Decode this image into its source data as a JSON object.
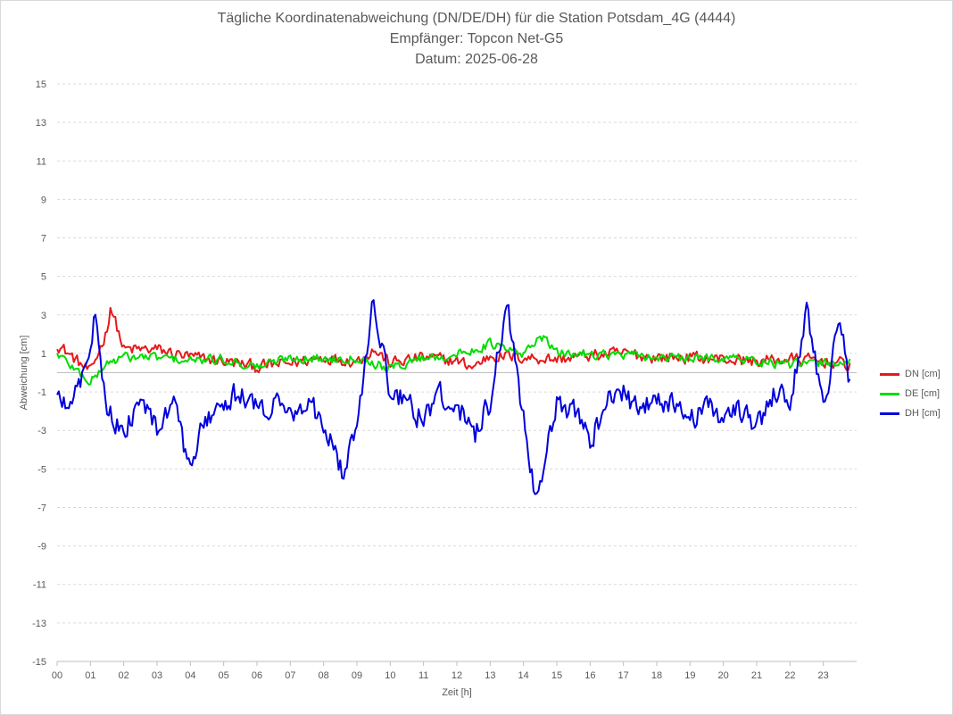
{
  "chart_data": {
    "type": "line",
    "title": "Tägliche Koordinatenabweichung (DN/DE/DH) für die Station Potsdam_4G (4444)",
    "subtitle1": "Empfänger: Topcon Net-G5",
    "subtitle2": "Datum: 2025-06-28",
    "xlabel": "Zeit [h]",
    "ylabel": "Abweichung [cm]",
    "xlim": [
      0,
      24
    ],
    "ylim": [
      -15,
      15
    ],
    "x_ticks": [
      "00",
      "01",
      "02",
      "03",
      "04",
      "05",
      "06",
      "07",
      "08",
      "09",
      "10",
      "11",
      "12",
      "13",
      "14",
      "15",
      "16",
      "17",
      "18",
      "19",
      "20",
      "21",
      "22",
      "23"
    ],
    "y_ticks": [
      "15",
      "13",
      "11",
      "9",
      "7",
      "5",
      "3",
      "1",
      "-1",
      "-3",
      "-5",
      "-7",
      "-9",
      "-11",
      "-13",
      "-15"
    ],
    "grid": "horizontal dashed",
    "legend_position": "right",
    "series": [
      {
        "name": "DN [cm]",
        "color": "#e41a1c",
        "x": [
          0,
          1,
          1.5,
          1.6,
          2,
          3,
          4,
          5,
          6,
          7,
          8,
          9,
          9.5,
          10,
          11,
          12,
          12.5,
          13,
          14,
          15,
          16,
          17,
          18,
          19,
          20,
          21,
          22,
          23,
          23.8
        ],
        "y": [
          1.5,
          0,
          2.2,
          3.5,
          1.2,
          1.2,
          0.8,
          0.6,
          0.3,
          0.5,
          0.8,
          0.6,
          1.2,
          0.5,
          0.8,
          0.6,
          0.3,
          0.9,
          0.8,
          0.7,
          0.9,
          1.0,
          0.8,
          0.8,
          0.7,
          0.6,
          0.7,
          0.6,
          0.4
        ]
      },
      {
        "name": "DE [cm]",
        "color": "#00dd00",
        "x": [
          0,
          1,
          1.5,
          2,
          3,
          4,
          5,
          6,
          7,
          8,
          9,
          10,
          11,
          12,
          13,
          14,
          14.5,
          15,
          16,
          17,
          18,
          19,
          20,
          21,
          22,
          23,
          23.8
        ],
        "y": [
          1.0,
          -0.5,
          0.5,
          0.8,
          0.8,
          0.6,
          0.7,
          0.3,
          0.8,
          0.7,
          0.8,
          0.2,
          0.8,
          0.9,
          1.5,
          0.9,
          2.0,
          1.0,
          1.0,
          0.9,
          0.8,
          0.7,
          0.8,
          0.6,
          0.4,
          0.5,
          0.6
        ]
      },
      {
        "name": "DH [cm]",
        "color": "#0000dd",
        "x": [
          0,
          0.5,
          1,
          1.15,
          1.5,
          2,
          2.5,
          3,
          3.5,
          3.9,
          4.5,
          5,
          5.5,
          6,
          6.5,
          7,
          7.5,
          8,
          8.3,
          8.6,
          9,
          9.5,
          10,
          10.5,
          11,
          11.5,
          12,
          12.5,
          13,
          13.5,
          14,
          14.3,
          14.5,
          15,
          15.5,
          16,
          16.5,
          17,
          17.5,
          18,
          18.5,
          19,
          19.5,
          20,
          20.5,
          21,
          21.5,
          22,
          22.5,
          23,
          23.5,
          23.8
        ],
        "y": [
          -1.5,
          -1.5,
          1.2,
          3.5,
          -2.0,
          -3.0,
          -1.5,
          -3.0,
          -1.5,
          -4.8,
          -2.5,
          -1.5,
          -1.0,
          -2.0,
          -1.5,
          -2.0,
          -1.5,
          -2.5,
          -4.0,
          -5.3,
          -2.5,
          3.8,
          -1.0,
          -1.5,
          -2.5,
          -1.0,
          -1.5,
          -3.5,
          -1.5,
          3.7,
          -2.5,
          -5.7,
          -5.5,
          -1.5,
          -2.0,
          -3.5,
          -1.5,
          -1.0,
          -2.0,
          -1.5,
          -1.5,
          -2.5,
          -1.5,
          -2.5,
          -2.0,
          -3.0,
          -1.0,
          -1.5,
          3.2,
          -1.5,
          2.5,
          -0.5
        ]
      }
    ]
  }
}
